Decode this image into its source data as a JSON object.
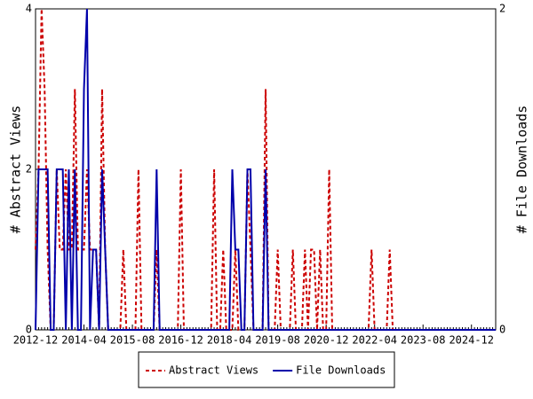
{
  "chart_data": {
    "type": "line",
    "y_label": "# Abstract Views",
    "y2_label": "# File Downloads",
    "categories": [
      "2012-12",
      null,
      null,
      null,
      null,
      null,
      null,
      null,
      null,
      null,
      null,
      null,
      null,
      null,
      null,
      null,
      "2014-04",
      null,
      null,
      null,
      null,
      null,
      null,
      null,
      null,
      null,
      null,
      null,
      null,
      null,
      null,
      null,
      "2015-08",
      null,
      null,
      null,
      null,
      null,
      null,
      null,
      null,
      null,
      null,
      null,
      null,
      null,
      null,
      null,
      "2016-12",
      null,
      null,
      null,
      null,
      null,
      null,
      null,
      null,
      null,
      null,
      null,
      null,
      null,
      null,
      null,
      "2018-04",
      null,
      null,
      null,
      null,
      null,
      null,
      null,
      null,
      null,
      null,
      null,
      null,
      null,
      null,
      null,
      "2019-08",
      null,
      null,
      null,
      null,
      null,
      null,
      null,
      null,
      null,
      null,
      null,
      null,
      null,
      null,
      null,
      "2020-12",
      null,
      null,
      null,
      null,
      null,
      null,
      null,
      null,
      null,
      null,
      null,
      null,
      null,
      null,
      null,
      "2022-04",
      null,
      null,
      null,
      null,
      null,
      null,
      null,
      null,
      null,
      null,
      null,
      null,
      null,
      null,
      null,
      "2023-08",
      null,
      null,
      null,
      null,
      null,
      null,
      null,
      null,
      null,
      null,
      null,
      null,
      null,
      null,
      null,
      "2024-12",
      null,
      null,
      null,
      null,
      null,
      null,
      null,
      null
    ],
    "series": [
      {
        "name": "Abstract Views",
        "color": "#cc0000",
        "style": "dashed",
        "axis": "y",
        "values": [
          1,
          2,
          4,
          3,
          1,
          0,
          0,
          2,
          1,
          1,
          2,
          1,
          1,
          3,
          1,
          1,
          1,
          2,
          1,
          1,
          1,
          0,
          3,
          1,
          0,
          0,
          0,
          0,
          0,
          1,
          0,
          0,
          0,
          0,
          2,
          0,
          0,
          0,
          0,
          0,
          1,
          0,
          0,
          0,
          0,
          0,
          0,
          0,
          2,
          0,
          0,
          0,
          0,
          0,
          0,
          0,
          0,
          0,
          0,
          2,
          0,
          0,
          1,
          0,
          0,
          0,
          1,
          0,
          0,
          0,
          2,
          1,
          0,
          0,
          0,
          0,
          3,
          0,
          0,
          0,
          1,
          0,
          0,
          0,
          0,
          1,
          0,
          0,
          0,
          1,
          0,
          1,
          1,
          0,
          1,
          0,
          0,
          2,
          0,
          0,
          0,
          0,
          0,
          0,
          0,
          0,
          0,
          0,
          0,
          0,
          0,
          1,
          0,
          0,
          0,
          0,
          0,
          1,
          0,
          0,
          0,
          0,
          0,
          0,
          0,
          0,
          0,
          0,
          0,
          0,
          0,
          0,
          0,
          0,
          0,
          0,
          0,
          0,
          0,
          0,
          0,
          0,
          0,
          0,
          0,
          0,
          0,
          0,
          0,
          0,
          0,
          0,
          0
        ]
      },
      {
        "name": "File Downloads",
        "color": "#0000aa",
        "style": "solid",
        "axis": "y2",
        "values": [
          0,
          1,
          1,
          1,
          1,
          0,
          0,
          1,
          1,
          1,
          0,
          1,
          0,
          1,
          0,
          0,
          1.5,
          2,
          0,
          0.5,
          0.5,
          0,
          1,
          0.5,
          0,
          0,
          0,
          0,
          0,
          0,
          0,
          0,
          0,
          0,
          0,
          0,
          0,
          0,
          0,
          0,
          1,
          0,
          0,
          0,
          0,
          0,
          0,
          0,
          0,
          0,
          0,
          0,
          0,
          0,
          0,
          0,
          0,
          0,
          0,
          0,
          0,
          0,
          0,
          0,
          0,
          1,
          0.5,
          0.5,
          0,
          0,
          1,
          1,
          0,
          0,
          0,
          0,
          1,
          0,
          0,
          0,
          0,
          0,
          0,
          0,
          0,
          0,
          0,
          0,
          0,
          0,
          0,
          0,
          0,
          0,
          0,
          0,
          0,
          0,
          0,
          0,
          0,
          0,
          0,
          0,
          0,
          0,
          0,
          0,
          0,
          0,
          0,
          0,
          0,
          0,
          0,
          0,
          0,
          0,
          0,
          0,
          0,
          0,
          0,
          0,
          0,
          0,
          0,
          0,
          0,
          0,
          0,
          0,
          0,
          0,
          0,
          0,
          0,
          0,
          0,
          0,
          0,
          0,
          0,
          0,
          0,
          0,
          0,
          0,
          0,
          0,
          0,
          0,
          0
        ]
      }
    ],
    "ylim": [
      0,
      4
    ],
    "yticks": [
      0,
      2,
      4
    ],
    "y2lim": [
      0,
      2
    ],
    "y2ticks": [
      0,
      2
    ],
    "grid": false,
    "legend": "bottom"
  }
}
